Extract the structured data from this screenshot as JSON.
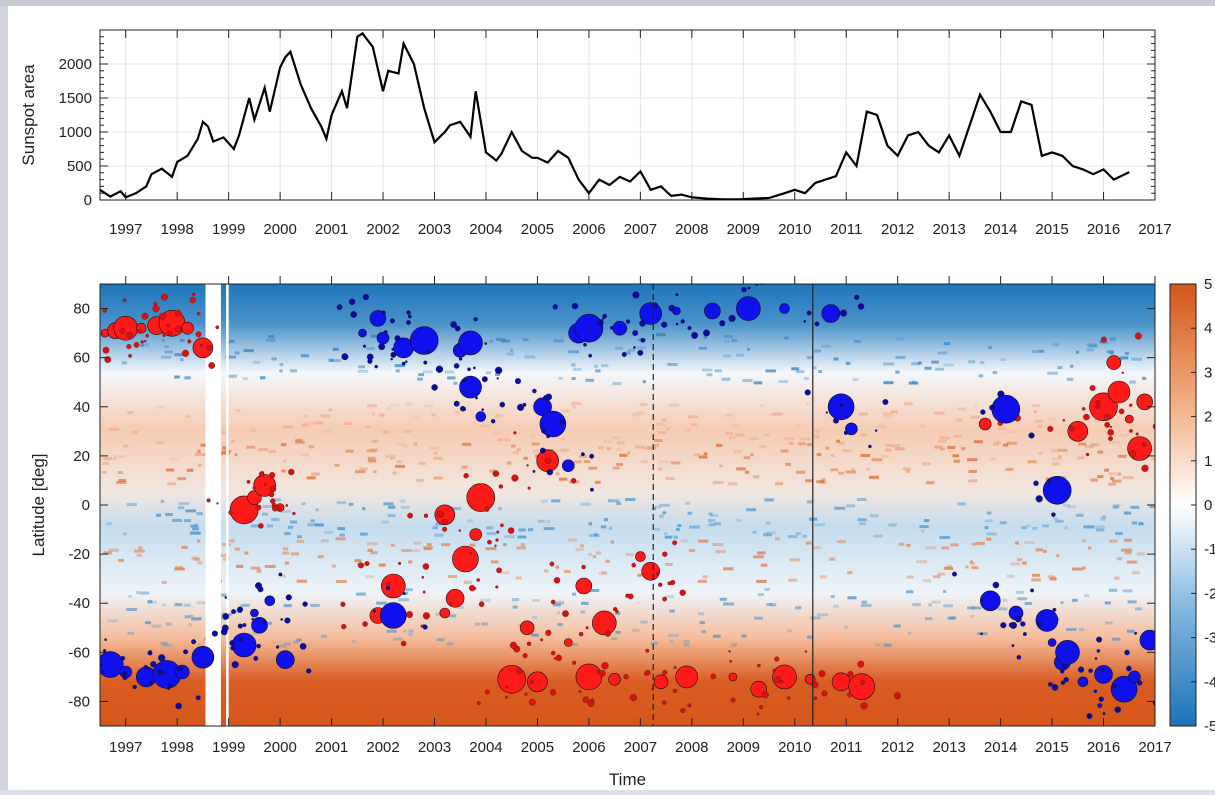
{
  "chart_data": [
    {
      "type": "line",
      "ylabel": "Sunspot area",
      "xlabel": "",
      "xlim": [
        1996.5,
        2017.0
      ],
      "ylim": [
        0,
        2500
      ],
      "xticks": [
        1997,
        1998,
        1999,
        2000,
        2001,
        2002,
        2003,
        2004,
        2005,
        2006,
        2007,
        2008,
        2009,
        2010,
        2011,
        2012,
        2013,
        2014,
        2015,
        2016,
        2017
      ],
      "yticks": [
        0,
        500,
        1000,
        1500,
        2000
      ],
      "grid": true,
      "series": [
        {
          "color": "#000000",
          "x": [
            1996.5,
            1996.7,
            1996.9,
            1997.0,
            1997.2,
            1997.4,
            1997.5,
            1997.7,
            1997.9,
            1998.0,
            1998.2,
            1998.4,
            1998.5,
            1998.6,
            1998.7,
            1998.9,
            1999.1,
            1999.2,
            1999.4,
            1999.5,
            1999.7,
            1999.8,
            2000.0,
            2000.1,
            2000.2,
            2000.4,
            2000.6,
            2000.8,
            2000.9,
            2001.0,
            2001.2,
            2001.3,
            2001.5,
            2001.6,
            2001.8,
            2002.0,
            2002.1,
            2002.3,
            2002.4,
            2002.6,
            2002.8,
            2003.0,
            2003.2,
            2003.3,
            2003.5,
            2003.7,
            2003.8,
            2004.0,
            2004.2,
            2004.3,
            2004.5,
            2004.7,
            2004.9,
            2005.0,
            2005.2,
            2005.4,
            2005.6,
            2005.8,
            2006.0,
            2006.2,
            2006.4,
            2006.6,
            2006.8,
            2007.0,
            2007.2,
            2007.4,
            2007.6,
            2007.8,
            2008.0,
            2008.3,
            2008.6,
            2008.9,
            2009.2,
            2009.5,
            2009.8,
            2010.0,
            2010.2,
            2010.4,
            2010.6,
            2010.8,
            2011.0,
            2011.2,
            2011.4,
            2011.6,
            2011.8,
            2012.0,
            2012.2,
            2012.4,
            2012.6,
            2012.8,
            2013.0,
            2013.2,
            2013.4,
            2013.6,
            2013.8,
            2014.0,
            2014.2,
            2014.4,
            2014.6,
            2014.8,
            2015.0,
            2015.2,
            2015.4,
            2015.6,
            2015.8,
            2016.0,
            2016.2,
            2016.5
          ],
          "y": [
            150,
            50,
            130,
            40,
            100,
            200,
            380,
            460,
            340,
            560,
            650,
            900,
            1150,
            1080,
            860,
            920,
            750,
            950,
            1500,
            1180,
            1650,
            1300,
            1950,
            2100,
            2180,
            1700,
            1350,
            1080,
            900,
            1250,
            1600,
            1350,
            2400,
            2450,
            2250,
            1600,
            1900,
            1860,
            2300,
            2000,
            1350,
            850,
            1000,
            1100,
            1150,
            930,
            1600,
            700,
            580,
            680,
            1000,
            720,
            620,
            620,
            550,
            720,
            620,
            300,
            100,
            300,
            220,
            340,
            270,
            420,
            150,
            200,
            60,
            80,
            40,
            20,
            10,
            10,
            20,
            30,
            100,
            150,
            100,
            250,
            300,
            350,
            700,
            500,
            1300,
            1250,
            800,
            650,
            950,
            1000,
            800,
            700,
            950,
            650,
            1100,
            1550,
            1300,
            1000,
            1000,
            1450,
            1400,
            650,
            700,
            650,
            500,
            450,
            380,
            450,
            300,
            410
          ]
        }
      ]
    },
    {
      "type": "heatmap",
      "xlabel": "Time",
      "ylabel": "Latitude [deg]",
      "xlim": [
        1996.5,
        2017.0
      ],
      "ylim": [
        -90,
        90
      ],
      "xticks": [
        1997,
        1998,
        1999,
        2000,
        2001,
        2002,
        2003,
        2004,
        2005,
        2006,
        2007,
        2008,
        2009,
        2010,
        2011,
        2012,
        2013,
        2014,
        2015,
        2016,
        2017
      ],
      "yticks": [
        -80,
        -60,
        -40,
        -20,
        0,
        20,
        40,
        60,
        80
      ],
      "colorbar": {
        "ticks": [
          "5",
          "4",
          "3",
          "2",
          "1",
          "0",
          "-1",
          "-2",
          "-3",
          "-4",
          "-5"
        ],
        "range": [
          -5,
          5
        ],
        "colormap": "blue-white-orange"
      },
      "vertical_lines": [
        {
          "x": 2007.25,
          "style": "dashed"
        },
        {
          "x": 2010.35,
          "style": "solid"
        }
      ],
      "series": [
        {
          "color": "#ff1a1a",
          "points": [
            [
              1996.6,
              70
            ],
            [
              1996.8,
              71
            ],
            [
              1997.0,
              72
            ],
            [
              1997.3,
              72
            ],
            [
              1997.6,
              73
            ],
            [
              1997.9,
              74
            ],
            [
              1998.2,
              72
            ],
            [
              1998.5,
              64
            ],
            [
              1999.3,
              -2
            ],
            [
              1999.5,
              3
            ],
            [
              1999.7,
              8
            ],
            [
              2000.0,
              -1
            ],
            [
              2001.9,
              -45
            ],
            [
              2002.2,
              -33
            ],
            [
              2003.2,
              -44
            ],
            [
              2003.4,
              -38
            ],
            [
              2003.6,
              -22
            ],
            [
              2003.8,
              -12
            ],
            [
              2003.2,
              -4
            ],
            [
              2003.9,
              3
            ],
            [
              2004.8,
              -50
            ],
            [
              2005.2,
              18
            ],
            [
              2005.6,
              -56
            ],
            [
              2005.9,
              -33
            ],
            [
              2006.3,
              -48
            ],
            [
              2007.0,
              -21
            ],
            [
              2007.2,
              -27
            ],
            [
              2006.0,
              -70
            ],
            [
              2006.5,
              -71
            ],
            [
              2005.0,
              -72
            ],
            [
              2004.5,
              -71
            ],
            [
              2007.4,
              -72
            ],
            [
              2007.9,
              -70
            ],
            [
              2008.8,
              -70
            ],
            [
              2009.3,
              -75
            ],
            [
              2009.8,
              -70
            ],
            [
              2010.3,
              -71
            ],
            [
              2010.9,
              -72
            ],
            [
              2011.3,
              -74
            ],
            [
              2013.7,
              33
            ],
            [
              2015.5,
              30
            ],
            [
              2016.0,
              40
            ],
            [
              2016.2,
              58
            ],
            [
              2016.3,
              46
            ],
            [
              2016.5,
              35
            ],
            [
              2016.8,
              42
            ],
            [
              2016.7,
              23
            ]
          ]
        },
        {
          "color": "#1010ee",
          "points": [
            [
              1996.7,
              -65
            ],
            [
              1997.0,
              -68
            ],
            [
              1997.4,
              -70
            ],
            [
              1997.8,
              -69
            ],
            [
              1998.1,
              -68
            ],
            [
              1998.5,
              -62
            ],
            [
              1999.5,
              -44
            ],
            [
              1999.6,
              -49
            ],
            [
              1999.3,
              -57
            ],
            [
              1999.8,
              -39
            ],
            [
              2000.1,
              -63
            ],
            [
              2002.2,
              -45
            ],
            [
              2002.0,
              68
            ],
            [
              2002.4,
              64
            ],
            [
              2002.8,
              67
            ],
            [
              2003.5,
              63
            ],
            [
              2003.7,
              48
            ],
            [
              2001.6,
              70
            ],
            [
              2001.9,
              76
            ],
            [
              2003.7,
              66
            ],
            [
              2003.9,
              36
            ],
            [
              2005.1,
              40
            ],
            [
              2005.3,
              33
            ],
            [
              2005.6,
              16
            ],
            [
              2005.8,
              70
            ],
            [
              2006.0,
              72
            ],
            [
              2006.6,
              72
            ],
            [
              2007.2,
              78
            ],
            [
              2007.7,
              79
            ],
            [
              2008.4,
              79
            ],
            [
              2009.1,
              80
            ],
            [
              2009.8,
              80
            ],
            [
              2010.7,
              78
            ],
            [
              2010.9,
              40
            ],
            [
              2011.1,
              31
            ],
            [
              2013.8,
              -39
            ],
            [
              2014.1,
              39
            ],
            [
              2014.3,
              -44
            ],
            [
              2014.9,
              -47
            ],
            [
              2015.0,
              -56
            ],
            [
              2015.2,
              -64
            ],
            [
              2015.3,
              -60
            ],
            [
              2015.6,
              -72
            ],
            [
              2016.0,
              -69
            ],
            [
              2016.4,
              -75
            ],
            [
              2016.6,
              -70
            ],
            [
              2016.9,
              -55
            ],
            [
              2015.1,
              6
            ]
          ]
        }
      ]
    }
  ]
}
